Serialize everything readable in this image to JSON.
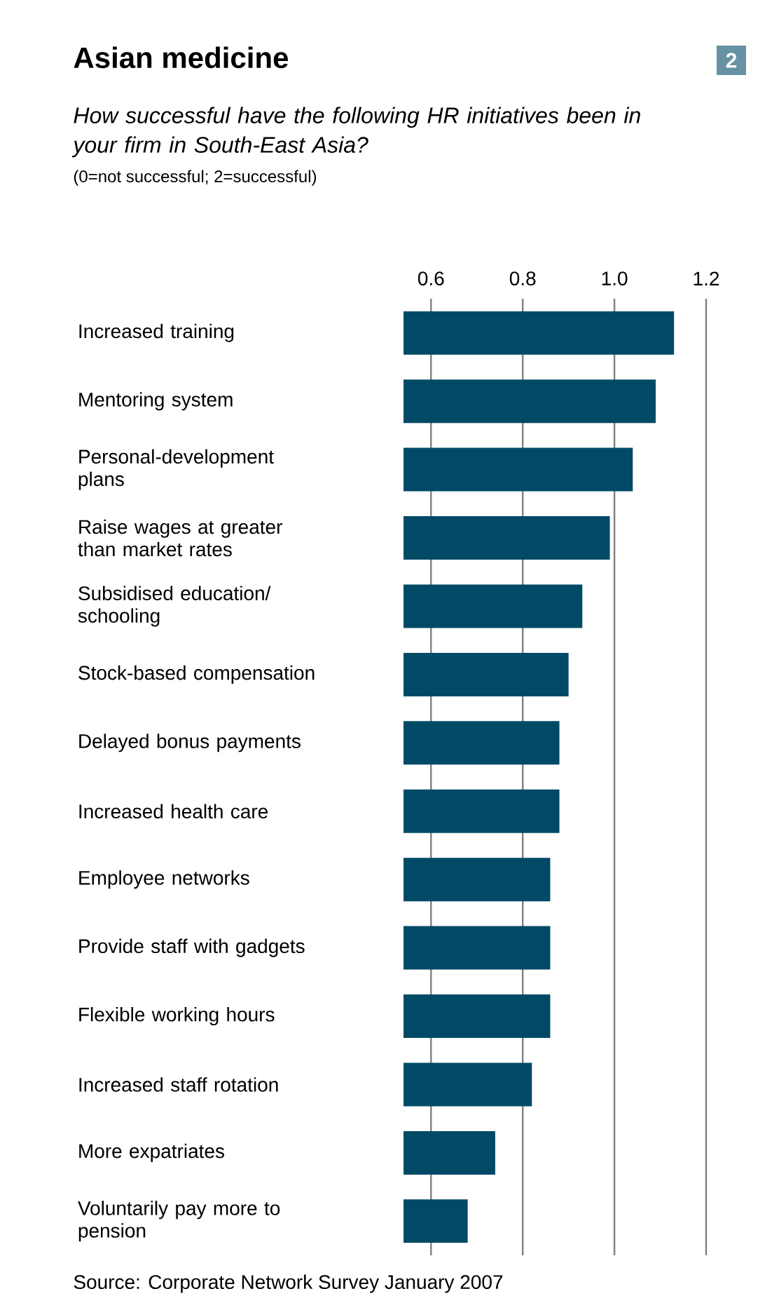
{
  "chart_data": {
    "type": "bar",
    "orientation": "horizontal",
    "title": "Asian medicine",
    "subtitle": "How successful have the following HR initiatives been in your firm in South-East Asia?",
    "annotations": [
      "(0=not successful; 2=successful)",
      "Source: Corporate Network Survey January 2007",
      "2"
    ],
    "categories": [
      "Increased training",
      "Mentoring system",
      "Personal-development plans",
      "Raise wages at greater than market rates",
      "Subsidised education/ schooling",
      "Stock-based compensation",
      "Delayed bonus payments",
      "Increased health care",
      "Employee networks",
      "Provide staff with gadgets",
      "Flexible working hours",
      "Increased staff rotation",
      "More expatriates",
      "Voluntarily pay more to pension"
    ],
    "values": [
      1.13,
      1.09,
      1.04,
      0.99,
      0.93,
      0.9,
      0.88,
      0.88,
      0.86,
      0.86,
      0.86,
      0.82,
      0.74,
      0.68
    ],
    "color": "#004a66",
    "xlim": [
      0.54,
      1.2
    ],
    "xticks": [
      0.6,
      0.8,
      {
        "value": 1.0,
        "label": "1.0"
      },
      1.2
    ],
    "grid": "x"
  }
}
